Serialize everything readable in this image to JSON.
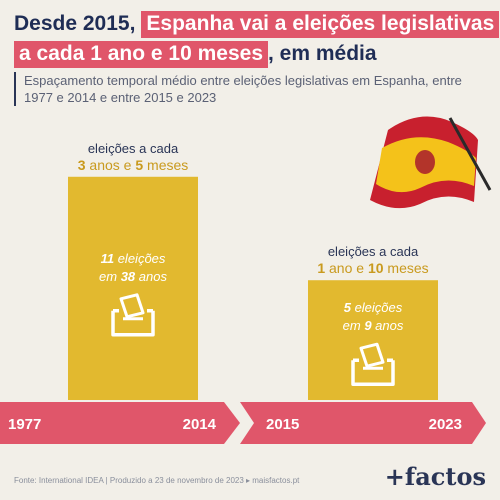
{
  "title": {
    "part1": "Desde 2015,",
    "part2": "Espanha vai a eleições legislativas",
    "part3": "a cada 1 ano e 10 meses",
    "part4": ", em média"
  },
  "subtitle": "Espaçamento temporal médio entre eleições legislativas em Espanha, entre 1977 e 2014 e entre 2015 e 2023",
  "chart_data": {
    "type": "bar",
    "categories": [
      "1977–2014",
      "2015–2023"
    ],
    "values_months": [
      41,
      22
    ],
    "ylim": [
      0,
      45
    ],
    "bars": [
      {
        "start_year": "1977",
        "end_year": "2014",
        "label_prefix": "eleições a cada",
        "years": "3",
        "years_word": "anos e",
        "months": "5",
        "months_word": "meses",
        "elections": "11",
        "elections_word": "eleições",
        "span": "38",
        "span_prefix": "em",
        "span_word": "anos"
      },
      {
        "start_year": "2015",
        "end_year": "2023",
        "label_prefix": "eleições a cada",
        "years": "1",
        "years_word": "ano e",
        "months": "10",
        "months_word": "meses",
        "elections": "5",
        "elections_word": "eleições",
        "span": "9",
        "span_prefix": "em",
        "span_word": "anos"
      }
    ]
  },
  "footer": "Fonte: International IDEA | Produzido a 23 de novembro de 2023 ▸ maisfactos.pt",
  "brand": "+factos",
  "colors": {
    "bar": "#e2b92f",
    "accent": "#e0566a",
    "bar_label_accent": "#c99a1e",
    "title_dark": "#1f2d55"
  },
  "icons": [
    "ballot-box-icon",
    "spain-flag"
  ]
}
